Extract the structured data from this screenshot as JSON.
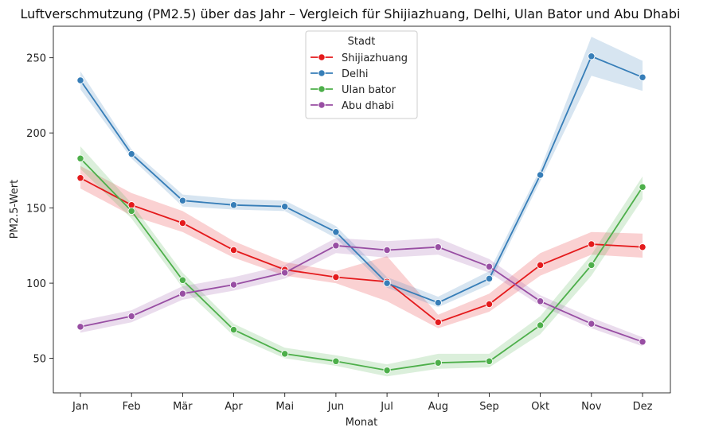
{
  "chart_data": {
    "type": "line",
    "title": "Luftverschmutzung (PM2.5) über das Jahr – Vergleich für Shijiazhuang, Delhi, Ulan Bator und Abu Dhabi",
    "xlabel": "Monat",
    "ylabel": "PM2.5-Wert",
    "categories": [
      "Jan",
      "Feb",
      "Mär",
      "Apr",
      "Mai",
      "Jun",
      "Jul",
      "Aug",
      "Sep",
      "Okt",
      "Nov",
      "Dez"
    ],
    "ylim": [
      27,
      271
    ],
    "yticks": [
      50,
      100,
      150,
      200,
      250
    ],
    "grid": false,
    "legend": {
      "title": "Stadt",
      "position": "top-center"
    },
    "series": [
      {
        "name": "Shijiazhuang",
        "color": "#e41a1c",
        "values": [
          170,
          152,
          140,
          122,
          109,
          104,
          101,
          74,
          86,
          112,
          126,
          124
        ],
        "ci_lower": [
          163,
          145,
          134,
          117,
          105,
          100,
          88,
          70,
          81,
          105,
          119,
          117
        ],
        "ci_upper": [
          178,
          160,
          148,
          128,
          114,
          108,
          118,
          79,
          93,
          120,
          134,
          133
        ]
      },
      {
        "name": "Delhi",
        "color": "#377eb8",
        "values": [
          235,
          186,
          155,
          152,
          151,
          134,
          100,
          87,
          103,
          172,
          251,
          237
        ],
        "ci_lower": [
          229,
          183,
          151,
          149,
          148,
          130,
          97,
          84,
          99,
          168,
          238,
          228
        ],
        "ci_upper": [
          241,
          189,
          159,
          156,
          155,
          138,
          104,
          91,
          108,
          176,
          264,
          248
        ]
      },
      {
        "name": "Ulan bator",
        "color": "#4daf4a",
        "values": [
          183,
          148,
          102,
          69,
          53,
          48,
          42,
          47,
          48,
          72,
          112,
          164
        ],
        "ci_lower": [
          176,
          143,
          97,
          65,
          50,
          45,
          38,
          43,
          44,
          66,
          105,
          156
        ],
        "ci_upper": [
          191,
          153,
          107,
          73,
          57,
          52,
          46,
          53,
          53,
          78,
          119,
          171
        ]
      },
      {
        "name": "Abu dhabi",
        "color": "#984ea3",
        "values": [
          71,
          78,
          93,
          99,
          107,
          125,
          122,
          124,
          111,
          88,
          73,
          61
        ],
        "ci_lower": [
          67,
          74,
          89,
          95,
          103,
          120,
          117,
          119,
          107,
          85,
          70,
          58
        ],
        "ci_upper": [
          75,
          82,
          98,
          104,
          112,
          130,
          128,
          130,
          116,
          92,
          77,
          64
        ]
      }
    ]
  }
}
